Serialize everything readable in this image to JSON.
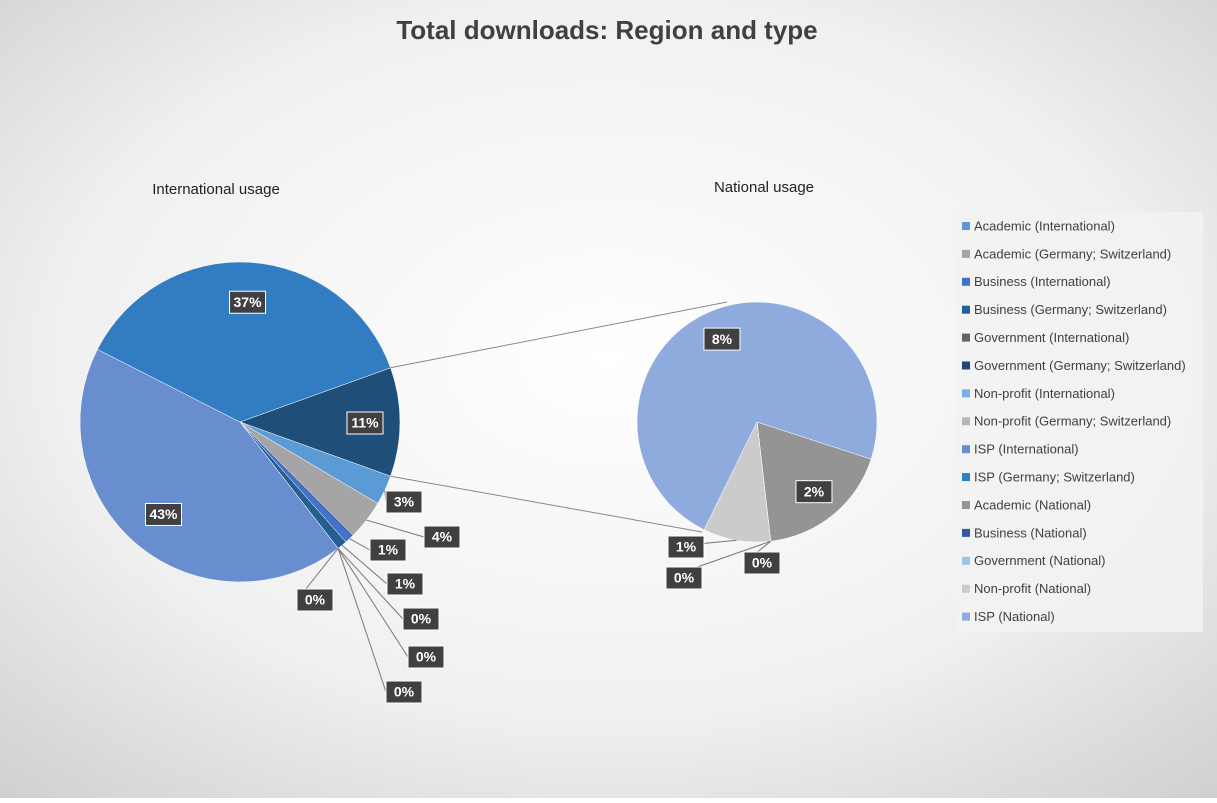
{
  "chart_data": {
    "type": "pie-of-pie",
    "title": "Total downloads: Region and type",
    "pies": [
      {
        "title": "International usage",
        "categories": [
          "Academic (International)",
          "Academic (Germany; Switzerland)",
          "Business (International)",
          "Business (Germany; Switzerland)",
          "Government (International)",
          "Government (Germany; Switzerland)",
          "Non-profit (International)",
          "Non-profit (Germany; Switzerland)",
          "ISP (International)",
          "ISP (Germany; Switzerland)"
        ],
        "colors": [
          "#5b9bd5",
          "#a5a5a5",
          "#4472c4",
          "#255e91",
          "#636363",
          "#264478",
          "#7cafdd",
          "#b7b7b7",
          "#698ed0",
          "#327dc2"
        ],
        "values": [
          3,
          4,
          1,
          1,
          0,
          0,
          0,
          0,
          43,
          37
        ],
        "value_labels": [
          "3%",
          "4%",
          "1%",
          "1%",
          "0%",
          "0%",
          "0%",
          "0%",
          "43%",
          "37%"
        ],
        "other": {
          "value": 11,
          "value_label": "11%",
          "color": "#1f4e79"
        }
      },
      {
        "title": "National usage",
        "categories": [
          "Academic (National)",
          "Business (National)",
          "Government (National)",
          "Non-profit (National)",
          "ISP (National)"
        ],
        "colors": [
          "#949494",
          "#335aa1",
          "#9dc3e6",
          "#cbcbcb",
          "#8faadc"
        ],
        "values": [
          2,
          0,
          0,
          1,
          8
        ],
        "value_labels": [
          "2%",
          "0%",
          "0%",
          "1%",
          "8%"
        ]
      }
    ]
  }
}
